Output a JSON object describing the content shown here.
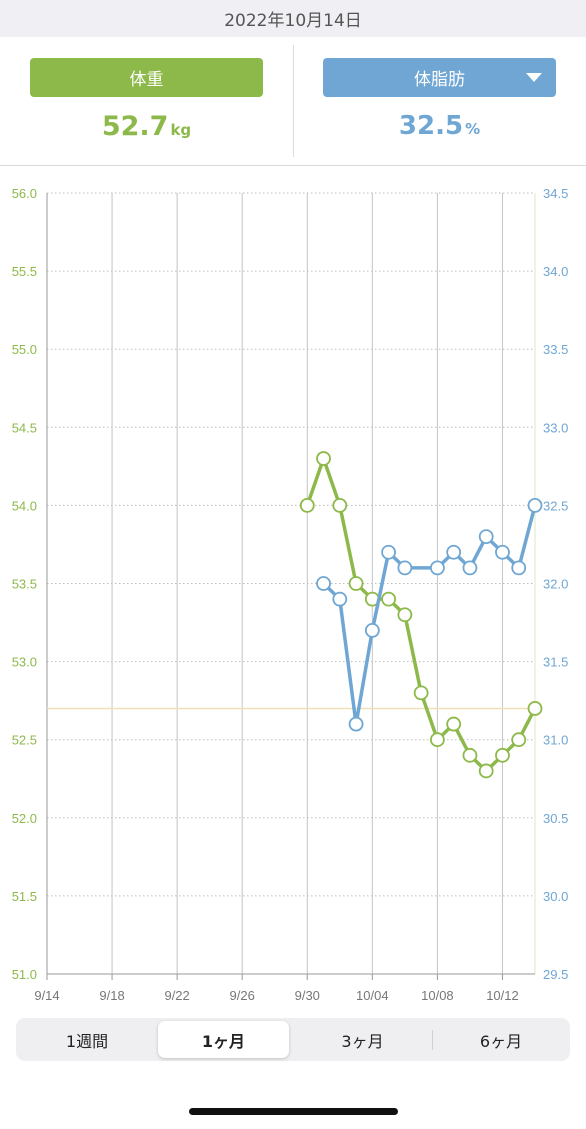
{
  "header": {
    "date": "2022年10月14日"
  },
  "summary": {
    "weight": {
      "label": "体重",
      "value": "52.7",
      "unit": "kg"
    },
    "fat": {
      "label": "体脂肪",
      "value": "32.5",
      "unit": "%",
      "dropdown_icon": "caret-down-icon"
    }
  },
  "period_tabs": [
    {
      "label": "1週間",
      "active": false
    },
    {
      "label": "1ヶ月",
      "active": true
    },
    {
      "label": "3ヶ月",
      "active": false
    },
    {
      "label": "6ヶ月",
      "active": false
    }
  ],
  "colors": {
    "weight": "#8db94a",
    "fat": "#6fa6d3",
    "reference_line": "#f0dfb8",
    "grid": "#bdbdbd"
  },
  "chart_data": {
    "type": "line",
    "x_tick_labels": [
      "9/14",
      "9/18",
      "9/22",
      "9/26",
      "9/30",
      "10/04",
      "10/08",
      "10/12"
    ],
    "x_range": [
      "2022-09-14",
      "2022-10-14"
    ],
    "y_left": {
      "range": [
        51.0,
        56.0
      ],
      "ticks": [
        "51.0",
        "51.5",
        "52.0",
        "52.5",
        "53.0",
        "53.5",
        "54.0",
        "54.5",
        "55.0",
        "55.5",
        "56.0"
      ]
    },
    "y_right": {
      "range": [
        29.5,
        34.5
      ],
      "ticks": [
        "29.5",
        "30.0",
        "30.5",
        "31.0",
        "31.5",
        "32.0",
        "32.5",
        "33.0",
        "33.5",
        "34.0",
        "34.5"
      ]
    },
    "reference_line": {
      "axis": "left",
      "value": 52.7
    },
    "grid": true,
    "series": [
      {
        "axis": "left",
        "dates": [
          "2022-09-30",
          "2022-10-01",
          "2022-10-02",
          "2022-10-03",
          "2022-10-04",
          "2022-10-05",
          "2022-10-06",
          "2022-10-07",
          "2022-10-08",
          "2022-10-09",
          "2022-10-10",
          "2022-10-11",
          "2022-10-12",
          "2022-10-13",
          "2022-10-14"
        ],
        "values": [
          54.0,
          54.3,
          54.0,
          53.5,
          53.4,
          53.4,
          53.3,
          52.8,
          52.5,
          52.6,
          52.4,
          52.3,
          52.4,
          52.5,
          52.7
        ]
      },
      {
        "axis": "right",
        "dates": [
          "2022-10-01",
          "2022-10-02",
          "2022-10-03",
          "2022-10-04",
          "2022-10-05",
          "2022-10-06",
          "2022-10-08",
          "2022-10-09",
          "2022-10-10",
          "2022-10-11",
          "2022-10-12",
          "2022-10-13",
          "2022-10-14"
        ],
        "values": [
          32.0,
          31.9,
          31.1,
          31.7,
          32.2,
          32.1,
          32.1,
          32.2,
          32.1,
          32.3,
          32.2,
          32.1,
          32.5
        ]
      }
    ]
  }
}
